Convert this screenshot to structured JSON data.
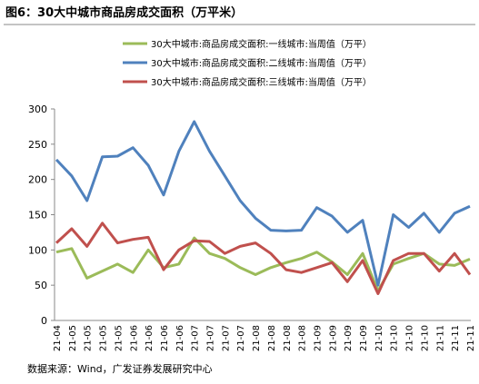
{
  "chart_data": {
    "type": "line",
    "title": "图6：30大中城市商品房成交面积（万平米）",
    "source": "数据来源：Wind，广发证券发展研究中心",
    "categories": [
      "21-04",
      "21-05",
      "21-05",
      "21-05",
      "21-05",
      "21-06",
      "21-06",
      "21-06",
      "21-06",
      "21-07",
      "21-07",
      "21-07",
      "21-07",
      "21-08",
      "21-08",
      "21-08",
      "21-08",
      "21-09",
      "21-09",
      "21-09",
      "21-09",
      "21-10",
      "21-10",
      "21-10",
      "21-10",
      "21-11",
      "21-11",
      "21-11"
    ],
    "series": [
      {
        "name": "30大中城市:商品房成交面积:一线城市:当周值（万平）",
        "color": "#9bbb59",
        "values": [
          97,
          102,
          60,
          70,
          80,
          68,
          100,
          75,
          80,
          117,
          95,
          88,
          75,
          65,
          75,
          82,
          88,
          97,
          83,
          65,
          95,
          42,
          80,
          88,
          95,
          80,
          78,
          87
        ]
      },
      {
        "name": "30大中城市:商品房成交面积:二线城市:当周值（万平）",
        "color": "#4f81bd",
        "values": [
          228,
          205,
          170,
          232,
          233,
          245,
          220,
          178,
          240,
          282,
          240,
          205,
          170,
          145,
          128,
          127,
          128,
          160,
          148,
          125,
          142,
          50,
          150,
          132,
          152,
          125,
          152,
          162
        ]
      },
      {
        "name": "30大中城市:商品房成交面积:三线城市:当周值（万平）",
        "color": "#c0504d",
        "values": [
          110,
          130,
          105,
          138,
          110,
          115,
          118,
          72,
          100,
          113,
          112,
          95,
          105,
          110,
          95,
          72,
          68,
          75,
          82,
          55,
          85,
          38,
          85,
          95,
          95,
          70,
          95,
          65
        ]
      }
    ],
    "ylim": [
      0,
      300
    ],
    "yticks": [
      0,
      50,
      100,
      150,
      200,
      250,
      300
    ]
  }
}
